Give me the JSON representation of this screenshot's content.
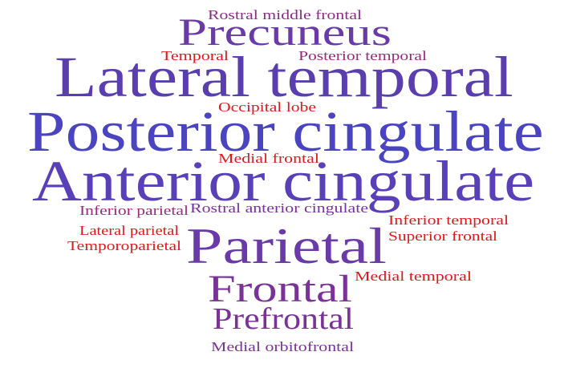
{
  "words": [
    {
      "text": "Rostral middle frontal",
      "weight": 1,
      "color": "#8e2a8a"
    },
    {
      "text": "Precuneus",
      "weight": 5,
      "color": "#6a3aa8"
    },
    {
      "text": "Temporal",
      "weight": 1,
      "color": "#e01818"
    },
    {
      "text": "Posterior temporal",
      "weight": 1,
      "color": "#9a2a7a"
    },
    {
      "text": "Lateral temporal",
      "weight": 9,
      "color": "#5a3eb0"
    },
    {
      "text": "Occipital lobe",
      "weight": 1,
      "color": "#e01818"
    },
    {
      "text": "Posterior cingulate",
      "weight": 10,
      "color": "#4a44c0"
    },
    {
      "text": "Medial frontal",
      "weight": 1,
      "color": "#e01818"
    },
    {
      "text": "Anterior cingulate",
      "weight": 10,
      "color": "#5a40b8"
    },
    {
      "text": "Inferior parietal",
      "weight": 1,
      "color": "#9a2a7a"
    },
    {
      "text": "Rostral anterior cingulate",
      "weight": 1,
      "color": "#7a30a0"
    },
    {
      "text": "Inferior temporal",
      "weight": 1,
      "color": "#e01818"
    },
    {
      "text": "Lateral parietal",
      "weight": 1,
      "color": "#e01818"
    },
    {
      "text": "Parietal",
      "weight": 8,
      "color": "#6a3aa8"
    },
    {
      "text": "Superior frontal",
      "weight": 1,
      "color": "#e01818"
    },
    {
      "text": "Temporoparietal",
      "weight": 1,
      "color": "#e01818"
    },
    {
      "text": "Frontal",
      "weight": 6,
      "color": "#7a3298"
    },
    {
      "text": "Medial temporal",
      "weight": 1,
      "color": "#e01818"
    },
    {
      "text": "Prefrontal",
      "weight": 4,
      "color": "#7a3298"
    },
    {
      "text": "Medial orbitofrontal",
      "weight": 1,
      "color": "#7a3298"
    }
  ]
}
